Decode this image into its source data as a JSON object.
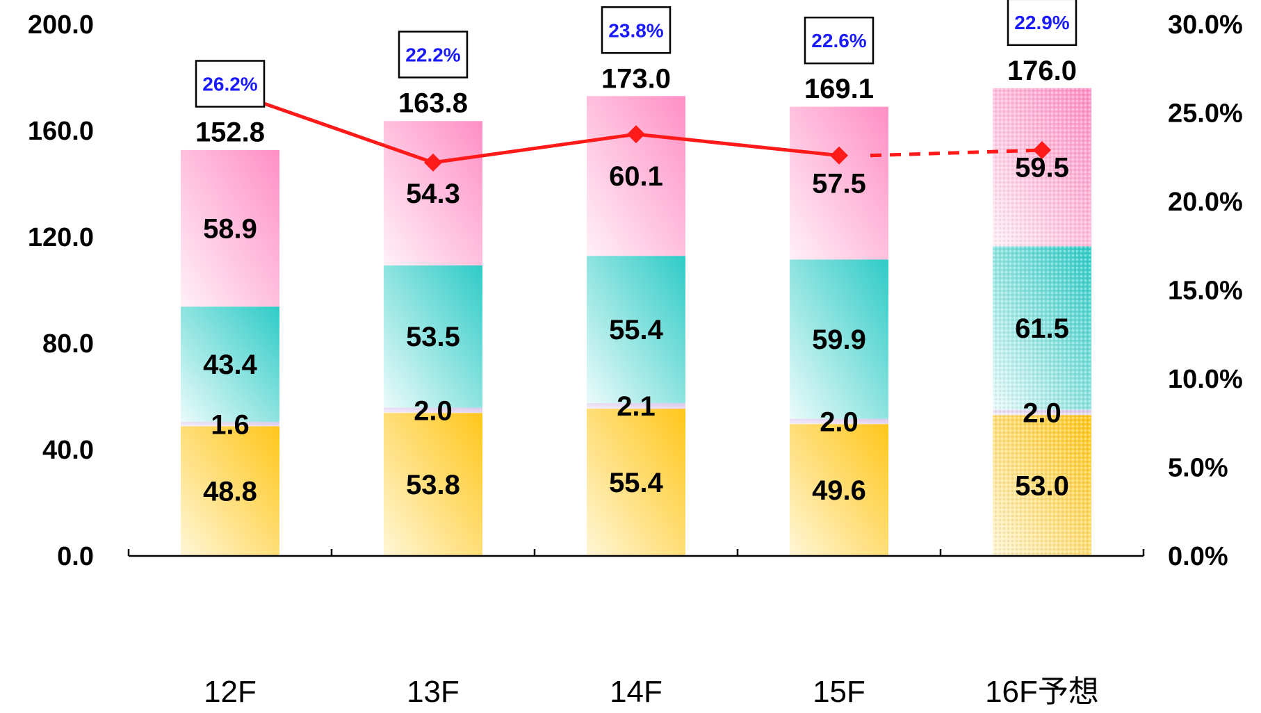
{
  "chart_data": {
    "type": "bar",
    "stacked": true,
    "categories": [
      "12F",
      "13F",
      "14F",
      "15F",
      "16F予想"
    ],
    "forecast_index": 4,
    "series": [
      {
        "values": [
          48.8,
          53.8,
          55.4,
          49.6,
          53.0
        ],
        "color": "#FFC61A"
      },
      {
        "values": [
          1.6,
          2.0,
          2.1,
          2.0,
          2.0
        ],
        "color": "#E6D8F2"
      },
      {
        "values": [
          43.4,
          53.5,
          55.4,
          59.9,
          61.5
        ],
        "color": "#3CCFCB"
      },
      {
        "values": [
          58.9,
          54.3,
          60.1,
          57.5,
          59.5
        ],
        "color": "#FF8FC4"
      }
    ],
    "totals": [
      152.8,
      163.8,
      173.0,
      169.1,
      176.0
    ],
    "total_labels": [
      "152.8",
      "163.8",
      "173.0",
      "169.1",
      "176.0"
    ],
    "segment_labels": [
      [
        "48.8",
        "53.8",
        "55.4",
        "49.6",
        "53.0"
      ],
      [
        "1.6",
        "2.0",
        "2.1",
        "2.0",
        "2.0"
      ],
      [
        "43.4",
        "53.5",
        "55.4",
        "59.9",
        "61.5"
      ],
      [
        "58.9",
        "54.3",
        "60.1",
        "57.5",
        "59.5"
      ]
    ],
    "line": {
      "values": [
        26.2,
        22.2,
        23.8,
        22.6,
        22.9
      ],
      "labels": [
        "26.2%",
        "22.2%",
        "23.8%",
        "22.6%",
        "22.9%"
      ],
      "color": "#FF1A1A",
      "last_segment_dashed": true
    },
    "y_left": {
      "ylim": [
        0,
        200
      ],
      "ticks": [
        0,
        40,
        80,
        120,
        160,
        200
      ],
      "tick_labels": [
        "0.0",
        "40.0",
        "80.0",
        "120.0",
        "160.0",
        "200.0"
      ]
    },
    "y_right": {
      "ylim": [
        0,
        30
      ],
      "ticks": [
        0,
        5,
        10,
        15,
        20,
        25,
        30
      ],
      "tick_labels": [
        "0.0%",
        "5.0%",
        "10.0%",
        "15.0%",
        "20.0%",
        "25.0%",
        "30.0%"
      ]
    },
    "grid": false,
    "legend": "none"
  }
}
